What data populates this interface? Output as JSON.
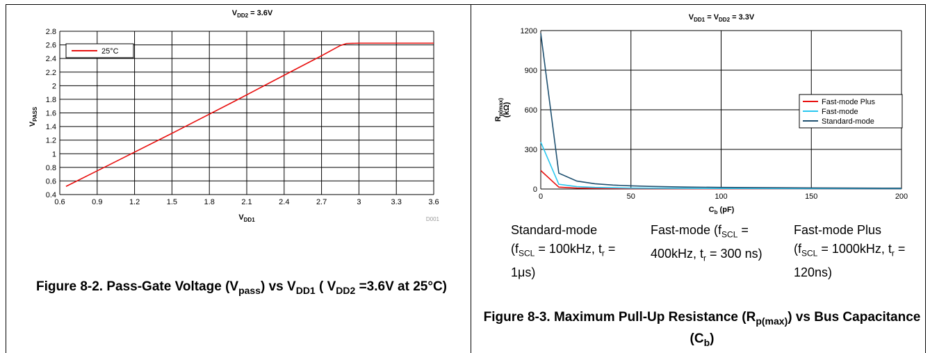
{
  "colors": {
    "fast_plus": "#e8100f",
    "fast": "#29c7ef",
    "standard": "#1d4f6f",
    "grid": "#000000",
    "watermark": "#999999"
  },
  "chart_data": [
    {
      "type": "line",
      "title": {
        "base": "V",
        "sub": "DD2",
        "rest": " = 3.6V"
      },
      "xlabel": {
        "base": "V",
        "sub": "DD1"
      },
      "ylabel": {
        "base": "V",
        "sub": "PASS"
      },
      "xlim": [
        0.6,
        3.6
      ],
      "ylim": [
        0.4,
        2.8
      ],
      "xticks": [
        "0.6",
        "0.9",
        "1.2",
        "1.5",
        "1.8",
        "2.1",
        "2.4",
        "2.7",
        "3",
        "3.3",
        "3.6"
      ],
      "yticks": [
        "0.4",
        "0.6",
        "0.8",
        "1",
        "1.2",
        "1.4",
        "1.6",
        "1.8",
        "2",
        "2.2",
        "2.4",
        "2.6",
        "2.8"
      ],
      "grid": true,
      "legend_position": "top-left",
      "watermark": "D001",
      "series": [
        {
          "name": "25°C",
          "color": "#e8100f",
          "x": [
            0.65,
            1.0,
            1.5,
            2.0,
            2.5,
            2.7,
            2.8,
            2.85,
            2.9,
            3.0,
            3.3,
            3.6
          ],
          "y": [
            0.52,
            0.84,
            1.3,
            1.77,
            2.25,
            2.44,
            2.54,
            2.59,
            2.62,
            2.625,
            2.625,
            2.625
          ]
        }
      ]
    },
    {
      "type": "line",
      "title": {
        "parts": [
          {
            "base": "V",
            "sub": "DD1"
          },
          {
            "text": " = "
          },
          {
            "base": "V",
            "sub": "DD2"
          },
          {
            "text": " = 3.3V"
          }
        ]
      },
      "xlabel": {
        "base": "C",
        "sub": "b",
        "rest": " (pF)"
      },
      "ylabel": {
        "base": "R",
        "sub": "p(max)",
        "rest": "(kΩ)"
      },
      "xlim": [
        0,
        200
      ],
      "ylim": [
        0,
        1200
      ],
      "xticks": [
        "0",
        "50",
        "100",
        "150",
        "200"
      ],
      "yticks": [
        "0",
        "300",
        "600",
        "900",
        "1200"
      ],
      "grid": true,
      "legend_position": "right",
      "series": [
        {
          "name": "Fast-mode Plus",
          "color": "#e8100f",
          "x": [
            0,
            10,
            20,
            30,
            50,
            100,
            200
          ],
          "y": [
            140,
            14,
            7,
            5,
            3,
            1.5,
            1
          ]
        },
        {
          "name": "Fast-mode",
          "color": "#29c7ef",
          "x": [
            0,
            10,
            20,
            30,
            50,
            100,
            200
          ],
          "y": [
            355,
            36,
            18,
            12,
            7,
            4,
            2
          ]
        },
        {
          "name": "Standard-mode",
          "color": "#1d4f6f",
          "x": [
            0,
            10,
            20,
            30,
            40,
            50,
            60,
            80,
            100,
            150,
            200
          ],
          "y": [
            1180,
            120,
            60,
            40,
            30,
            24,
            20,
            15,
            12,
            8,
            6
          ]
        }
      ]
    }
  ],
  "captions": {
    "fig2": {
      "prefix": "Figure 8-2. Pass-Gate Voltage (V",
      "sub1": "pass",
      "mid1": ") vs V",
      "sub2": "DD1",
      "mid2": " ( V",
      "sub3": "DD2",
      "suffix": " =3.6V at 25°C)"
    },
    "fig3": {
      "prefix": "Figure 8-3. Maximum Pull-Up Resistance (R",
      "sub1": "p(max)",
      "mid1": ") vs Bus Capacitance (C",
      "sub2": "b",
      "suffix": ")"
    }
  },
  "modes": [
    {
      "name": "Standard-mode",
      "open": "(f",
      "f_sub": "SCL",
      "f_val": " = 100kHz, t",
      "t_sub": "r",
      "t_val": " = 1μs)"
    },
    {
      "name": "Fast-mode (f",
      "open": "",
      "f_sub": "SCL",
      "f_val": " = 400kHz, t",
      "t_sub": "r",
      "t_val": " = 300 ns)"
    },
    {
      "name": "Fast-mode Plus",
      "open": "(f",
      "f_sub": "SCL",
      "f_val": " = 1000kHz, t",
      "t_sub": "r",
      "t_val": " = 120ns)"
    }
  ]
}
